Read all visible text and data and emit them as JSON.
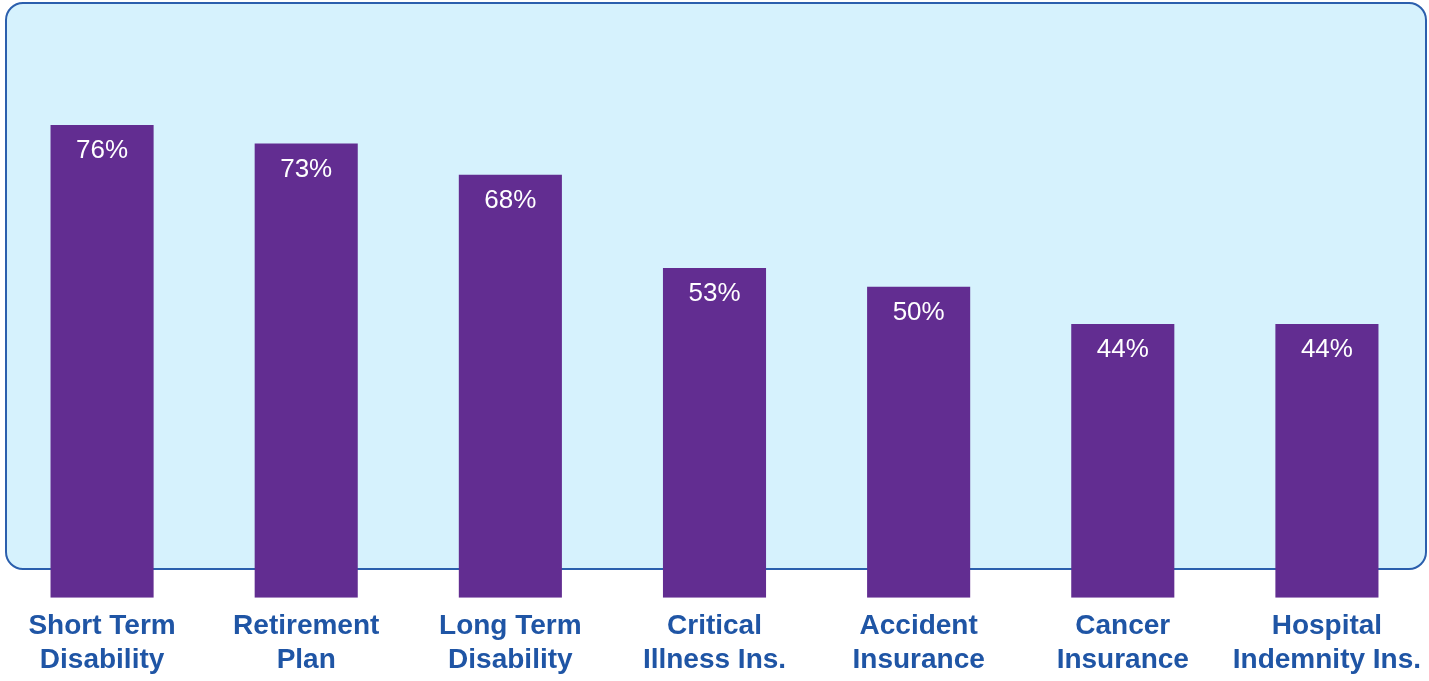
{
  "chart_data": {
    "type": "bar",
    "categories": [
      "Short Term Disability",
      "Retirement Plan",
      "Long Term Disability",
      "Critical Illness Ins.",
      "Accident Insurance",
      "Cancer Insurance",
      "Hospital Indemnity Ins."
    ],
    "values": [
      76,
      73,
      68,
      53,
      50,
      44,
      44
    ],
    "value_labels": [
      "76%",
      "73%",
      "68%",
      "53%",
      "50%",
      "44%",
      "44%"
    ],
    "color": "#622d91",
    "tick_labels": "x",
    "grid": false,
    "legend": false
  }
}
